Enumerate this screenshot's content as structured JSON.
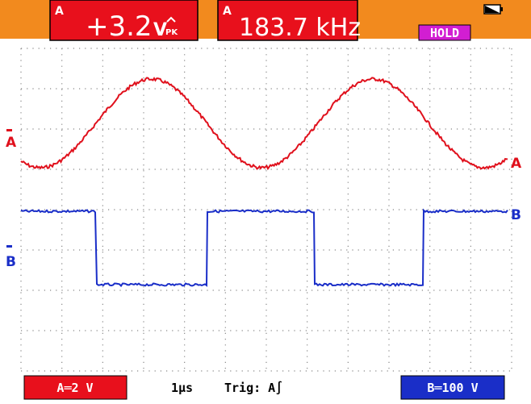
{
  "top_bar": {
    "reading_1": {
      "channel": "A",
      "value": "+3.2",
      "unit": "V",
      "unit_suffix": "PK"
    },
    "reading_2": {
      "channel": "A",
      "value": "183.7 kHz"
    },
    "status": "HOLD"
  },
  "traces": {
    "a": {
      "left_label": "A",
      "right_label": "A"
    },
    "b": {
      "left_label": "B",
      "right_label": "B"
    }
  },
  "bottom_bar": {
    "channel_a": "A═2 V",
    "timebase": "1µs",
    "trigger": "Trig: A∫",
    "channel_b": "B═100 V"
  }
}
